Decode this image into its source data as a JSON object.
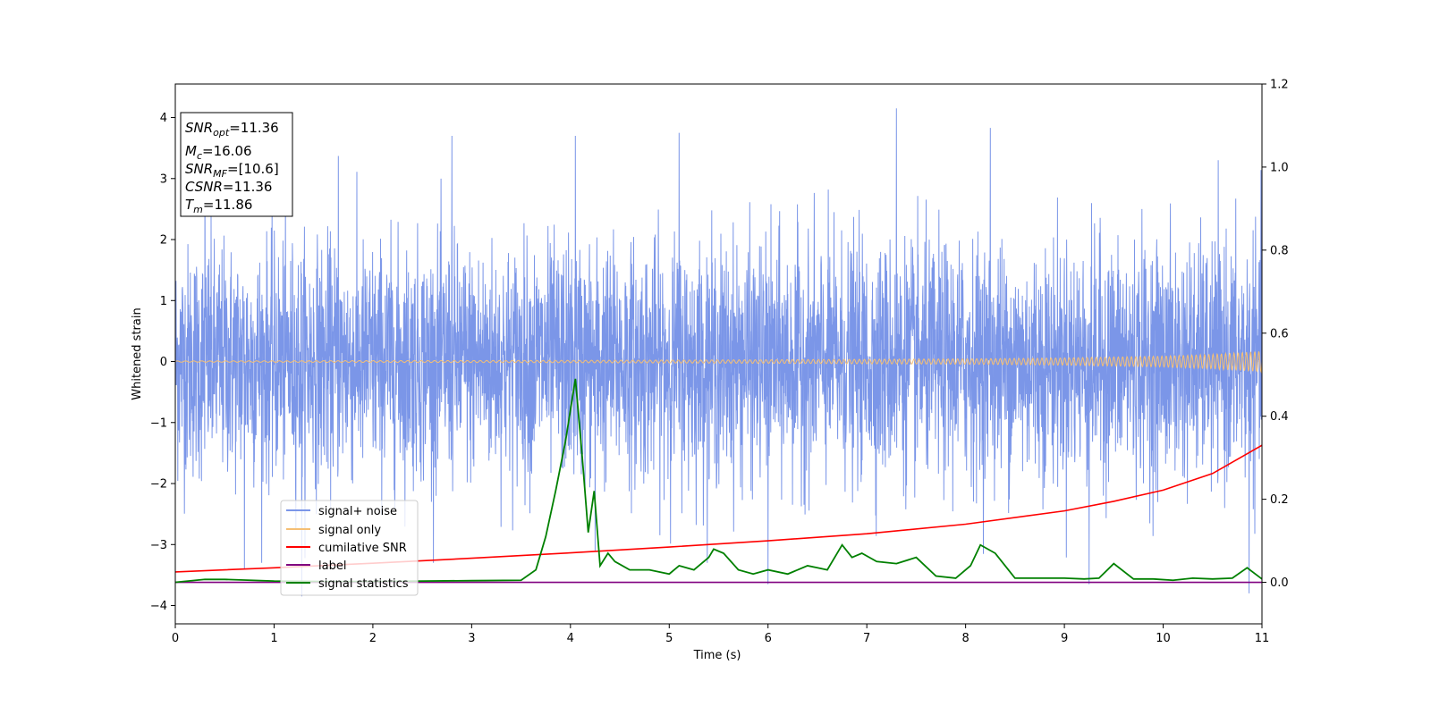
{
  "chart_data": {
    "type": "line",
    "xlabel": "Time (s)",
    "ylabel": "Whitened strain",
    "xlim": [
      0,
      11
    ],
    "ylim": [
      -4.3,
      4.55
    ],
    "y2lim": [
      -0.1,
      1.2
    ],
    "x_ticks": [
      0,
      1,
      2,
      3,
      4,
      5,
      6,
      7,
      8,
      9,
      10,
      11
    ],
    "y_ticks": [
      -4,
      -3,
      -2,
      -1,
      0,
      1,
      2,
      3,
      4
    ],
    "y2_ticks": [
      0.0,
      0.2,
      0.4,
      0.6,
      0.8,
      1.0,
      1.2
    ],
    "legend_position": "lower-left",
    "grid": false,
    "info_box": {
      "snr_opt": "=11.36",
      "mc": "=16.06",
      "snr_mf": "=[10.6]",
      "csnr": "=11.36",
      "tm": "=11.86"
    },
    "series": [
      {
        "name": "signal+ noise",
        "axis": "left",
        "color": "#7b96e8",
        "description_values": {
          "typical_range": [
            -2.5,
            2.5
          ],
          "peaks": [
            [
              0.3,
              3.5
            ],
            [
              1.65,
              3.37
            ],
            [
              2.8,
              3.7
            ],
            [
              4.05,
              3.7
            ],
            [
              5.1,
              3.75
            ],
            [
              7.3,
              4.15
            ],
            [
              8.25,
              3.83
            ],
            [
              10.87,
              3.6
            ]
          ],
          "troughs": [
            [
              0.7,
              -3.4
            ],
            [
              1.28,
              -3.85
            ],
            [
              4.25,
              -3.1
            ],
            [
              6.0,
              -3.65
            ],
            [
              9.25,
              -3.65
            ],
            [
              10.87,
              -3.8
            ]
          ]
        }
      },
      {
        "name": "signal only",
        "axis": "left",
        "color": "#f5bf74",
        "envelope": {
          "x": [
            0,
            2,
            4,
            6,
            8,
            9,
            10,
            10.5,
            11
          ],
          "amplitude": [
            0.01,
            0.015,
            0.02,
            0.03,
            0.045,
            0.06,
            0.09,
            0.12,
            0.17
          ]
        }
      },
      {
        "name": "cumilative SNR",
        "axis": "right",
        "color": "#ff0000",
        "x": [
          0,
          1,
          2,
          3,
          4,
          5,
          6,
          7,
          8,
          9,
          9.5,
          10,
          10.5,
          11
        ],
        "values": [
          0.025,
          0.035,
          0.046,
          0.058,
          0.071,
          0.085,
          0.1,
          0.117,
          0.14,
          0.172,
          0.195,
          0.222,
          0.262,
          0.33
        ]
      },
      {
        "name": "label",
        "axis": "right",
        "color": "#800080",
        "x": [
          0,
          11
        ],
        "values": [
          0.0,
          0.0
        ]
      },
      {
        "name": "signal statistics",
        "axis": "right",
        "color": "#008000",
        "x": [
          0,
          0.3,
          0.5,
          1.0,
          1.5,
          2.0,
          2.5,
          3.0,
          3.5,
          3.65,
          3.75,
          3.85,
          3.95,
          4.05,
          4.12,
          4.18,
          4.24,
          4.3,
          4.38,
          4.45,
          4.6,
          4.8,
          5.0,
          5.1,
          5.25,
          5.4,
          5.45,
          5.55,
          5.7,
          5.85,
          6.0,
          6.2,
          6.4,
          6.5,
          6.6,
          6.75,
          6.85,
          6.95,
          7.1,
          7.3,
          7.5,
          7.7,
          7.9,
          8.05,
          8.15,
          8.3,
          8.5,
          8.8,
          9.0,
          9.2,
          9.35,
          9.5,
          9.7,
          9.9,
          10.1,
          10.3,
          10.5,
          10.7,
          10.85,
          11.0
        ],
        "values": [
          0.0,
          0.007,
          0.007,
          0.003,
          0.002,
          0.002,
          0.003,
          0.004,
          0.005,
          0.03,
          0.11,
          0.22,
          0.34,
          0.49,
          0.3,
          0.12,
          0.22,
          0.04,
          0.07,
          0.05,
          0.03,
          0.03,
          0.02,
          0.04,
          0.03,
          0.06,
          0.08,
          0.07,
          0.03,
          0.02,
          0.03,
          0.02,
          0.04,
          0.035,
          0.03,
          0.09,
          0.06,
          0.07,
          0.05,
          0.045,
          0.06,
          0.015,
          0.01,
          0.04,
          0.09,
          0.07,
          0.01,
          0.01,
          0.01,
          0.008,
          0.01,
          0.045,
          0.008,
          0.008,
          0.005,
          0.01,
          0.008,
          0.01,
          0.035,
          0.008
        ]
      }
    ]
  }
}
